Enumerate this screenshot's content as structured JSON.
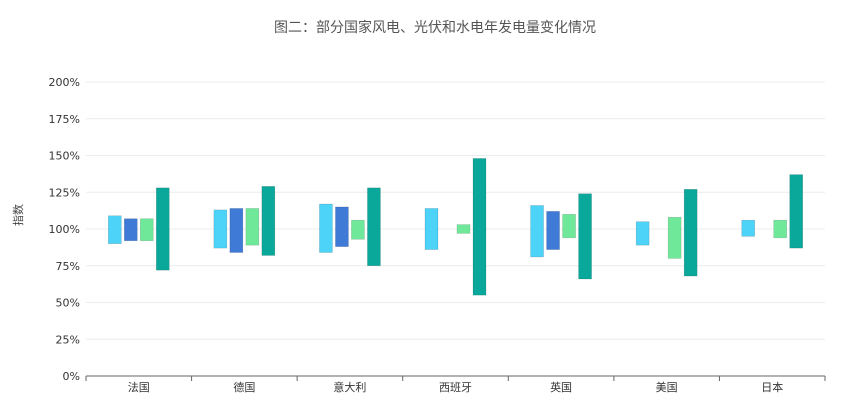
{
  "chart_data": {
    "type": "bar",
    "title": "图二：部分国家风电、光伏和水电年发电量变化情况",
    "xlabel": "",
    "ylabel": "指数",
    "ylim": [
      0,
      200
    ],
    "y_ticks": [
      "0%",
      "25%",
      "50%",
      "75%",
      "100%",
      "125%",
      "150%",
      "175%",
      "200%"
    ],
    "y_tick_values": [
      0,
      25,
      50,
      75,
      100,
      125,
      150,
      175,
      200
    ],
    "categories": [
      "法国",
      "德国",
      "意大利",
      "西班牙",
      "英国",
      "美国",
      "日本"
    ],
    "grid": true,
    "legend": "none",
    "series": [
      {
        "color": "#4dd2f8",
        "ranges": [
          [
            90,
            109
          ],
          [
            87,
            113
          ],
          [
            84,
            117
          ],
          [
            86,
            114
          ],
          [
            81,
            116
          ],
          [
            89,
            105
          ],
          [
            95,
            106
          ]
        ]
      },
      {
        "color": "#3f7ad6",
        "ranges": [
          [
            92,
            107
          ],
          [
            84,
            114
          ],
          [
            88,
            115
          ],
          null,
          [
            86,
            112
          ],
          null,
          null
        ]
      },
      {
        "color": "#6fe89a",
        "ranges": [
          [
            92,
            107
          ],
          [
            89,
            114
          ],
          [
            93,
            106
          ],
          [
            97,
            103
          ],
          [
            94,
            110
          ],
          [
            80,
            108
          ],
          [
            94,
            106
          ]
        ]
      },
      {
        "color": "#0aa89a",
        "ranges": [
          [
            72,
            128
          ],
          [
            82,
            129
          ],
          [
            75,
            128
          ],
          [
            55,
            148
          ],
          [
            66,
            124
          ],
          [
            68,
            127
          ],
          [
            87,
            137
          ]
        ]
      }
    ]
  }
}
